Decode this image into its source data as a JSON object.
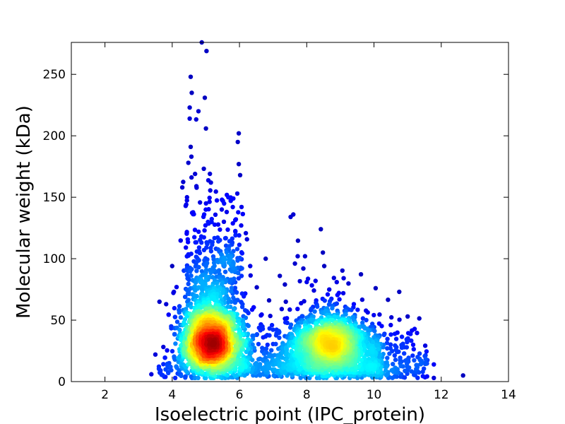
{
  "chart_data": {
    "type": "scatter",
    "title": "",
    "xlabel": "Isoelectric point (IPC_protein)",
    "ylabel": "Molecular weight (kDa)",
    "xlim": [
      1,
      14
    ],
    "ylim": [
      0,
      276
    ],
    "xticks": [
      2,
      4,
      6,
      8,
      10,
      12,
      14
    ],
    "yticks": [
      0,
      50,
      100,
      150,
      200,
      250
    ],
    "grid": false,
    "legend": "none",
    "colormap": "jet (point density)",
    "clusters": [
      {
        "center": [
          5.15,
          31
        ],
        "note": "acidic protein cluster, highest density"
      },
      {
        "center": [
          8.7,
          32
        ],
        "note": "basic protein cluster"
      }
    ],
    "outliers": [
      {
        "x": 4.88,
        "y": 276
      },
      {
        "x": 5.02,
        "y": 269
      },
      {
        "x": 4.55,
        "y": 248
      },
      {
        "x": 4.58,
        "y": 235
      },
      {
        "x": 4.97,
        "y": 231
      },
      {
        "x": 4.52,
        "y": 223
      },
      {
        "x": 4.78,
        "y": 220
      },
      {
        "x": 4.52,
        "y": 214
      },
      {
        "x": 5.98,
        "y": 202
      },
      {
        "x": 5.95,
        "y": 195
      },
      {
        "x": 4.55,
        "y": 191
      },
      {
        "x": 4.57,
        "y": 183
      },
      {
        "x": 5.98,
        "y": 177
      },
      {
        "x": 4.48,
        "y": 178
      },
      {
        "x": 6.02,
        "y": 168
      },
      {
        "x": 4.68,
        "y": 169
      },
      {
        "x": 5.15,
        "y": 162
      },
      {
        "x": 4.3,
        "y": 158
      },
      {
        "x": 4.72,
        "y": 159
      },
      {
        "x": 5.48,
        "y": 148
      },
      {
        "x": 4.4,
        "y": 143
      },
      {
        "x": 5.8,
        "y": 142
      },
      {
        "x": 7.6,
        "y": 136
      },
      {
        "x": 7.52,
        "y": 134
      },
      {
        "x": 5.62,
        "y": 138
      },
      {
        "x": 4.95,
        "y": 136
      },
      {
        "x": 8.42,
        "y": 124
      },
      {
        "x": 6.05,
        "y": 127
      },
      {
        "x": 8.48,
        "y": 105
      },
      {
        "x": 7.73,
        "y": 102
      },
      {
        "x": 7.95,
        "y": 102
      },
      {
        "x": 8.52,
        "y": 94
      },
      {
        "x": 7.9,
        "y": 92
      },
      {
        "x": 7.65,
        "y": 96
      },
      {
        "x": 6.78,
        "y": 100
      },
      {
        "x": 7.2,
        "y": 86
      },
      {
        "x": 6.32,
        "y": 94
      },
      {
        "x": 4.0,
        "y": 94
      },
      {
        "x": 3.82,
        "y": 63
      },
      {
        "x": 3.62,
        "y": 65
      },
      {
        "x": 4.05,
        "y": 73
      },
      {
        "x": 7.35,
        "y": 79
      },
      {
        "x": 8.0,
        "y": 81
      },
      {
        "x": 10.05,
        "y": 76
      },
      {
        "x": 10.75,
        "y": 73
      },
      {
        "x": 8.85,
        "y": 63
      },
      {
        "x": 9.4,
        "y": 63
      },
      {
        "x": 11.0,
        "y": 53
      },
      {
        "x": 10.5,
        "y": 46
      },
      {
        "x": 11.78,
        "y": 14
      },
      {
        "x": 11.78,
        "y": 3
      },
      {
        "x": 12.65,
        "y": 5
      },
      {
        "x": 3.38,
        "y": 6
      },
      {
        "x": 3.5,
        "y": 22
      },
      {
        "x": 3.95,
        "y": 12
      },
      {
        "x": 11.45,
        "y": 8
      },
      {
        "x": 11.3,
        "y": 20
      },
      {
        "x": 10.9,
        "y": 28
      },
      {
        "x": 10.3,
        "y": 38
      },
      {
        "x": 9.95,
        "y": 47
      }
    ]
  }
}
